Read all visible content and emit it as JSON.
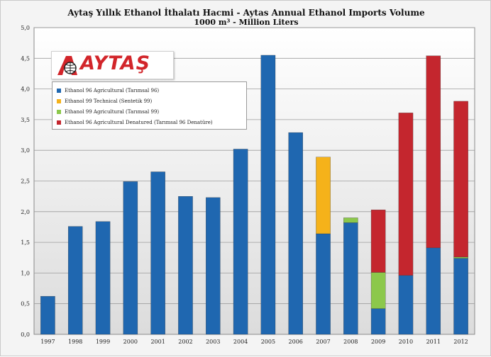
{
  "title": "Aytaş Yıllık Ethanol İthalatı Hacmi - Aytas Annual Ethanol Imports  Volume",
  "subtitle": "1000 m³ - Million Liters",
  "logo": {
    "brand": "AYTAŞ",
    "icon": "aytas-logo-icon"
  },
  "colors": {
    "blue": "#1f67b0",
    "orange": "#f5b21a",
    "green": "#8cc84b",
    "red": "#c4262e"
  },
  "chart_data": {
    "type": "bar",
    "stacked": true,
    "title": "Aytaş Yıllık Ethanol İthalatı Hacmi - Aytas Annual Ethanol Imports  Volume",
    "subtitle": "1000 m³ - Million Liters",
    "categories": [
      "1997",
      "1998",
      "1999",
      "2000",
      "2001",
      "2002",
      "2003",
      "2004",
      "2005",
      "2006",
      "2007",
      "2008",
      "2009",
      "2010",
      "2011",
      "2012"
    ],
    "ylim": [
      0,
      5
    ],
    "yticks": [
      "0,0",
      "0,5",
      "1,0",
      "1,5",
      "2,0",
      "2,5",
      "3,0",
      "3,5",
      "4,0",
      "4,5",
      "5,0"
    ],
    "grid": true,
    "legend_position": "top-left",
    "series": [
      {
        "name": "Ethanol 96 Agricultural (Tarımsal 96)",
        "color": "#1f67b0",
        "values": [
          0.62,
          1.76,
          1.84,
          2.49,
          2.65,
          2.25,
          2.23,
          3.02,
          4.55,
          3.29,
          1.64,
          1.82,
          0.42,
          0.96,
          1.41,
          1.24
        ]
      },
      {
        "name": "Ethanol 99 Technical (Sentetik 99)",
        "color": "#f5b21a",
        "values": [
          0,
          0,
          0,
          0,
          0,
          0,
          0,
          0,
          0,
          0,
          1.25,
          0,
          0,
          0,
          0,
          0
        ]
      },
      {
        "name": "Ethanol 99 Agricultural (Tarımsal 99)",
        "color": "#8cc84b",
        "values": [
          0,
          0,
          0,
          0,
          0,
          0,
          0,
          0,
          0,
          0,
          0,
          0.08,
          0.59,
          0,
          0,
          0.02
        ]
      },
      {
        "name": "Ethanol 96 Agricultural Denatured (Tarımsal 96 Denatüre)",
        "color": "#c4262e",
        "values": [
          0,
          0,
          0,
          0,
          0,
          0,
          0,
          0,
          0,
          0,
          0,
          0,
          1.02,
          2.65,
          3.13,
          2.54
        ]
      }
    ]
  }
}
